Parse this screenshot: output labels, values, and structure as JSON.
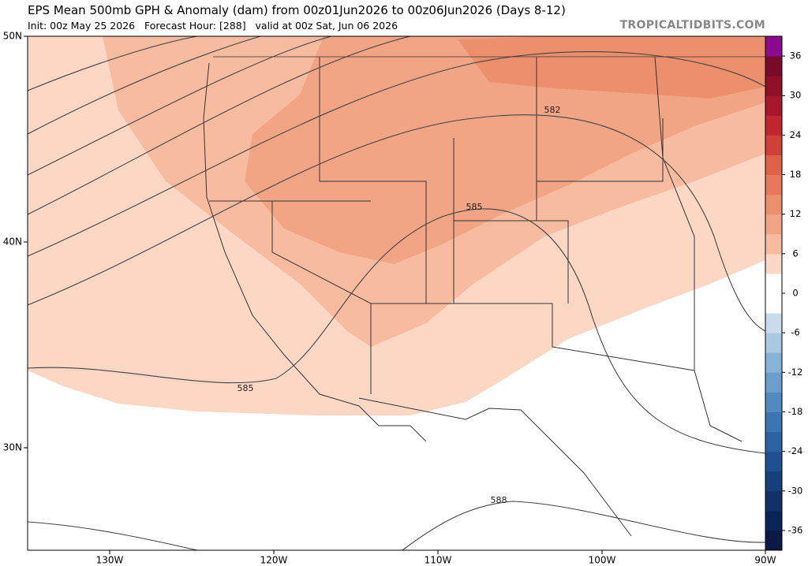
{
  "header": {
    "title": "EPS Mean 500mb GPH & Anomaly (dam) from 00z01Jun2026 to 00z06Jun2026 (Days 8-12)",
    "subtitle": "Init: 00z May 25 2026   Forecast Hour: [288]   valid at 00z Sat, Jun 06 2026",
    "site": "TROPICALTIDBITS.COM"
  },
  "map": {
    "lat_labels": [
      "50N",
      "40N",
      "30N"
    ],
    "lon_labels": [
      "130W",
      "120W",
      "110W",
      "100W",
      "90W"
    ],
    "contour_labels": [
      "582",
      "585",
      "585",
      "588"
    ]
  },
  "colorbar": {
    "range": [
      -39,
      39
    ],
    "ticks": [
      36,
      30,
      24,
      18,
      12,
      6,
      0,
      -6,
      -12,
      -18,
      -24,
      -30,
      -36
    ]
  }
}
